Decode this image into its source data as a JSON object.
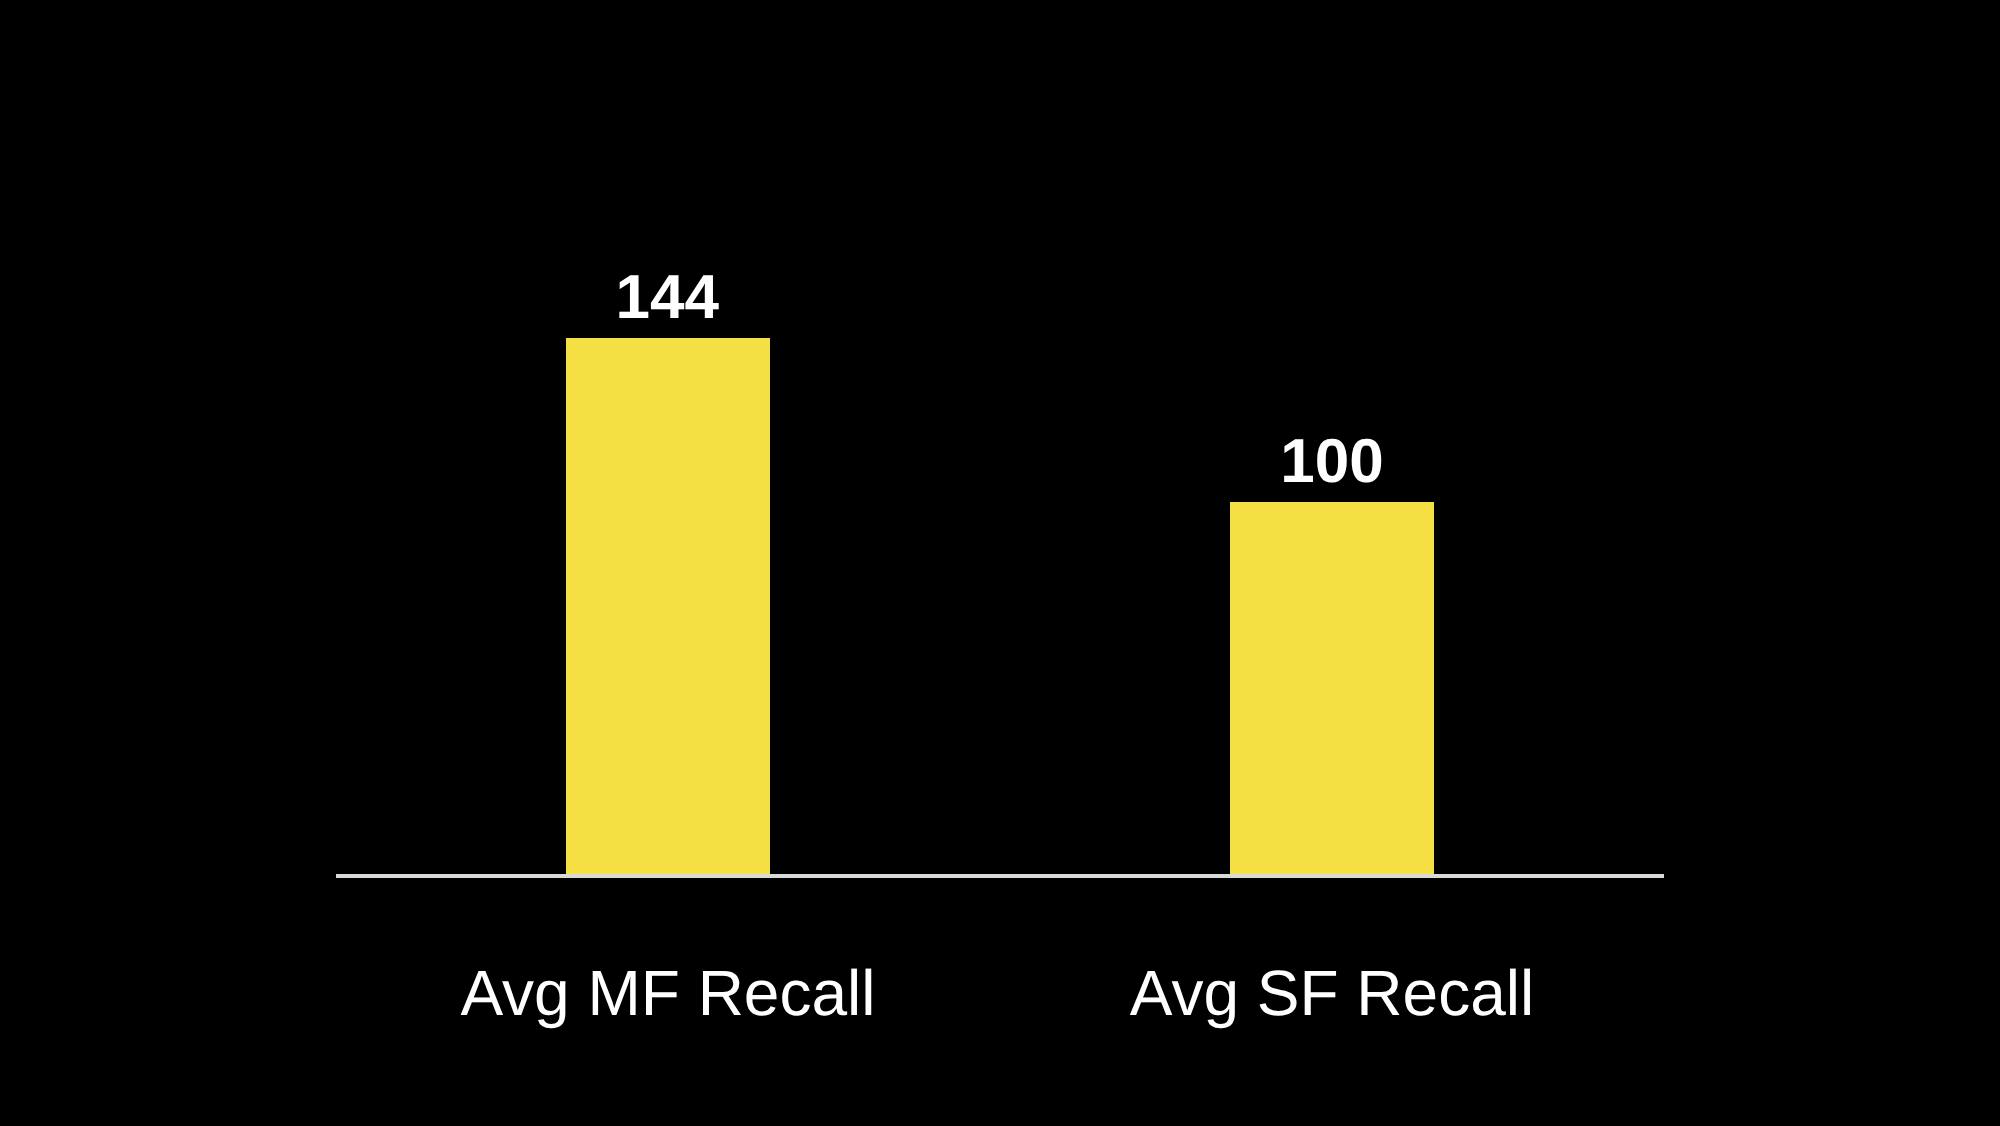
{
  "chart_data": {
    "type": "bar",
    "categories": [
      "Avg MF Recall",
      "Avg SF Recall"
    ],
    "values": [
      144,
      100
    ],
    "color": "#f5e043",
    "data_labels": true,
    "grid": false,
    "legend": false,
    "tick_labels": "x"
  }
}
